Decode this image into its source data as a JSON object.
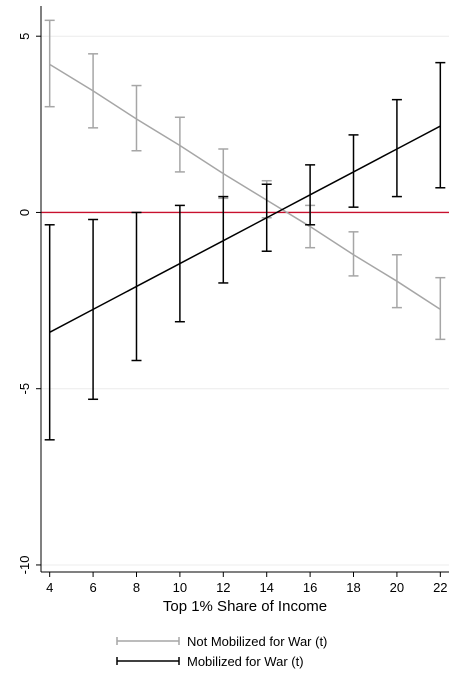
{
  "chart_data": {
    "type": "line",
    "xlabel": "Top 1% Share of Income",
    "ylabel": "",
    "x": [
      4,
      6,
      8,
      10,
      12,
      14,
      16,
      18,
      20,
      22
    ],
    "xlim": [
      3.6,
      22.4
    ],
    "ylim": [
      -10.2,
      5.8
    ],
    "xticks": [
      4,
      6,
      8,
      10,
      12,
      14,
      16,
      18,
      20,
      22
    ],
    "yticks": [
      5,
      0,
      -5,
      -10
    ],
    "yticklabels": [
      "5",
      "0",
      "-5",
      "-10"
    ],
    "grid": true,
    "reference_line": {
      "y": 0,
      "color": "#c8102e"
    },
    "legend_position": "bottom",
    "series": [
      {
        "name": "Not Mobilized for War (t)",
        "color": "#a6a6a6",
        "values": [
          4.2,
          3.45,
          2.65,
          1.9,
          1.1,
          0.35,
          -0.4,
          -1.2,
          -1.95,
          -2.75
        ],
        "ci_low": [
          3.0,
          2.4,
          1.75,
          1.15,
          0.4,
          -0.15,
          -1.0,
          -1.8,
          -2.7,
          -3.6
        ],
        "ci_high": [
          5.45,
          4.5,
          3.6,
          2.7,
          1.8,
          0.9,
          0.2,
          -0.55,
          -1.2,
          -1.85
        ]
      },
      {
        "name": "Mobilized for War (t)",
        "color": "#000000",
        "values": [
          -3.4,
          -2.75,
          -2.1,
          -1.45,
          -0.8,
          -0.15,
          0.5,
          1.15,
          1.8,
          2.45
        ],
        "ci_low": [
          -6.45,
          -5.3,
          -4.2,
          -3.1,
          -2.0,
          -1.1,
          -0.35,
          0.15,
          0.45,
          0.7
        ],
        "ci_high": [
          -0.35,
          -0.2,
          0.0,
          0.2,
          0.45,
          0.8,
          1.35,
          2.2,
          3.2,
          4.25
        ]
      }
    ]
  }
}
